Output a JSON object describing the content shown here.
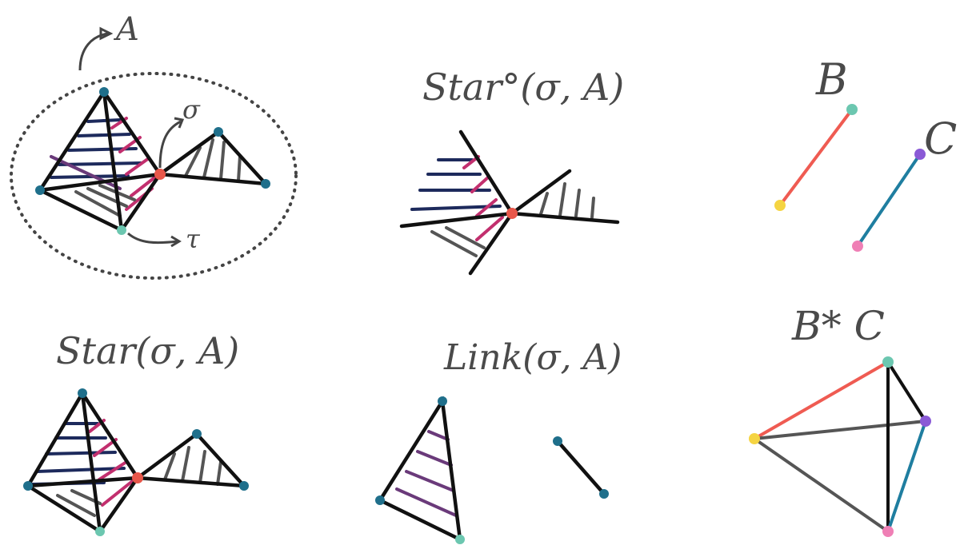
{
  "labels": {
    "complex_A": "A",
    "sigma": "σ",
    "tau": "τ",
    "open_star": "Star°(σ, A)",
    "closed_star": "Star(σ, A)",
    "link": "Link(σ, A)",
    "complex_B": "B",
    "complex_C": "C",
    "join": "B* C"
  },
  "colors": {
    "black": "#111111",
    "gray": "#555555",
    "navy": "#1d2a5c",
    "magenta": "#c22f6e",
    "purple": "#6a3a7a",
    "vertex_blue": "#1f6f8b",
    "vertex_red": "#e8574a",
    "vertex_teal": "#6cc7b0",
    "vertex_yellow": "#f5d442",
    "vertex_purple": "#8a5ad6",
    "vertex_pink": "#ef7fb5",
    "edge_red": "#ef5b52",
    "edge_blue": "#1f7ea0",
    "dotted_ellipse": "#444444"
  }
}
